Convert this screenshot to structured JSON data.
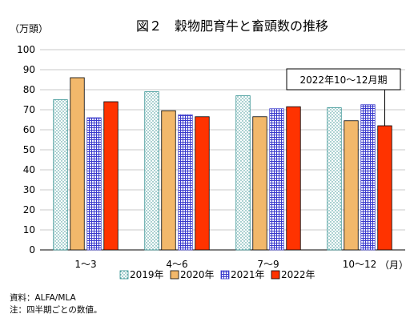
{
  "chart_data": {
    "type": "bar",
    "title": "図２　穀物肥育牛と畜頭数の推移",
    "ylabel": "（万頭）",
    "xunit": "（月）",
    "ylim": [
      0,
      100
    ],
    "yticks": [
      0,
      10,
      20,
      30,
      40,
      50,
      60,
      70,
      80,
      90,
      100
    ],
    "grid": true,
    "legend_position": "bottom",
    "categories": [
      "1〜3",
      "4〜6",
      "7〜9",
      "10〜12"
    ],
    "series": [
      {
        "name": "2019年",
        "values": [
          75,
          79,
          77,
          71
        ],
        "color": "#ffffff",
        "pattern": "dots",
        "pattern_color": "#2f8f8f"
      },
      {
        "name": "2020年",
        "values": [
          86,
          69.5,
          66.5,
          64.5
        ],
        "color": "#f2b86b",
        "pattern": "solid"
      },
      {
        "name": "2021年",
        "values": [
          66,
          67.5,
          70.5,
          72.5
        ],
        "color": "#ffffff",
        "pattern": "grid",
        "pattern_color": "#3a3acc"
      },
      {
        "name": "2022年",
        "values": [
          74,
          66.5,
          71.5,
          62
        ],
        "color": "#ff3300",
        "pattern": "solid"
      }
    ],
    "annotation": {
      "text": "2022年10〜12月期",
      "category_index": 3,
      "series_index": 3
    }
  },
  "notes": {
    "source": "資料：ALFA/MLA",
    "note": "注：四半期ごとの数値。"
  }
}
